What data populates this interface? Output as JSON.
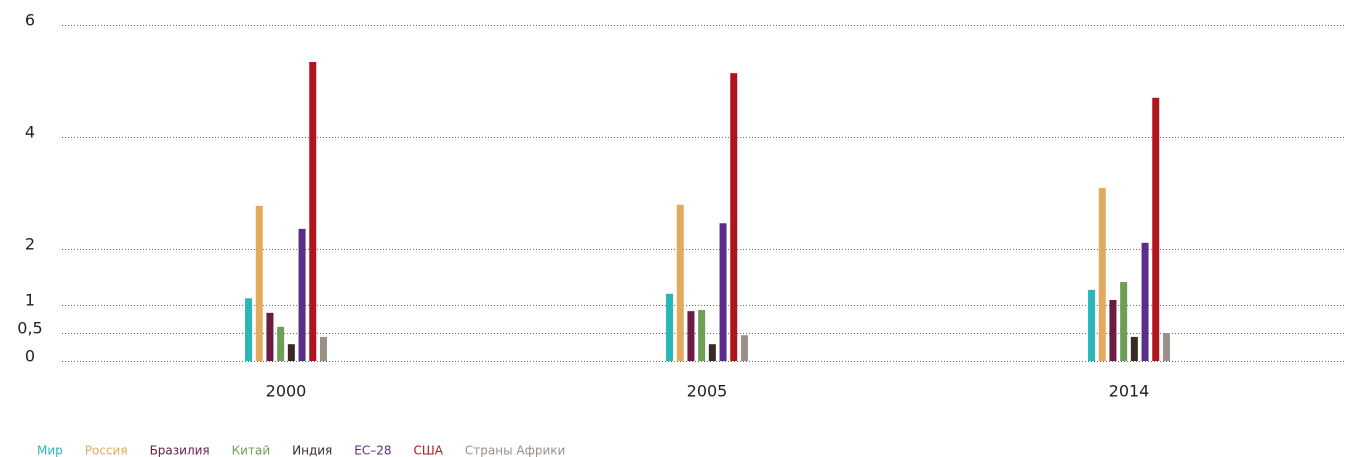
{
  "chart_data": {
    "type": "bar",
    "categories": [
      "2000",
      "2005",
      "2014"
    ],
    "series": [
      {
        "name": "Мир",
        "color": "#2ab7b9",
        "values": [
          1.12,
          1.2,
          1.27
        ]
      },
      {
        "name": "Россия",
        "color": "#e3a95c",
        "values": [
          2.77,
          2.79,
          3.09
        ]
      },
      {
        "name": "Бразилия",
        "color": "#6b1c40",
        "values": [
          0.86,
          0.89,
          1.09
        ]
      },
      {
        "name": "Китай",
        "color": "#6f9e57",
        "values": [
          0.61,
          0.91,
          1.41
        ]
      },
      {
        "name": "Индия",
        "color": "#3a2a24",
        "values": [
          0.3,
          0.3,
          0.43
        ]
      },
      {
        "name": "ЕС–28",
        "color": "#5b2d8a",
        "values": [
          2.36,
          2.46,
          2.11
        ]
      },
      {
        "name": "США",
        "color": "#b0141c",
        "values": [
          5.34,
          5.14,
          4.7
        ]
      },
      {
        "name": "Страны Африки",
        "color": "#9a9088",
        "values": [
          0.43,
          0.46,
          0.5
        ]
      }
    ],
    "ylim": [
      0,
      6
    ],
    "yticks": [
      0,
      {
        "value": 0.5,
        "label": "0,5"
      },
      1,
      2,
      4,
      6
    ],
    "grid": true,
    "legend": "bottom-left"
  }
}
